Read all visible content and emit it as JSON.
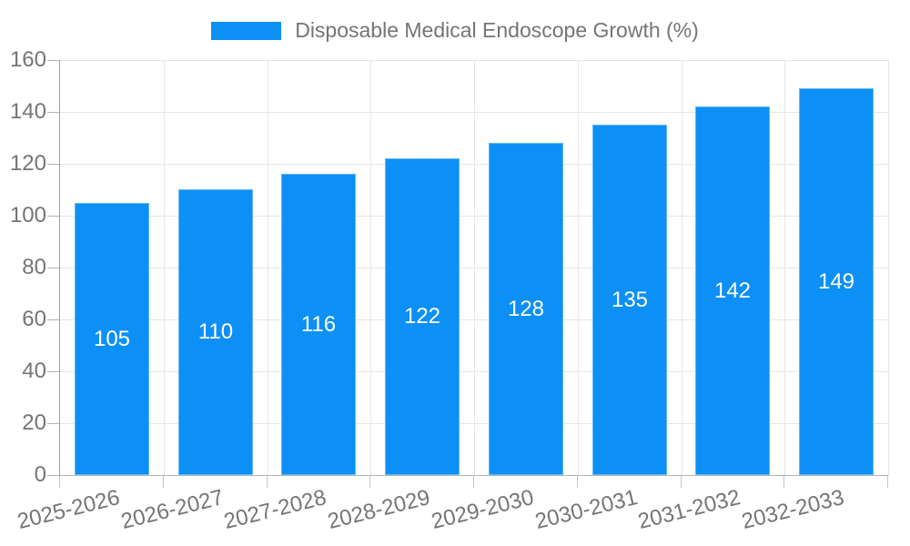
{
  "chart_data": {
    "type": "bar",
    "title": "",
    "legend": {
      "position": "top",
      "label": "Disposable Medical Endoscope Growth (%)"
    },
    "categories": [
      "2025-2026",
      "2026-2027",
      "2027-2028",
      "2028-2029",
      "2029-2030",
      "2030-2031",
      "2031-2032",
      "2032-2033"
    ],
    "series": [
      {
        "name": "Disposable Medical Endoscope Growth (%)",
        "values": [
          105,
          110,
          116,
          122,
          128,
          135,
          142,
          149
        ]
      }
    ],
    "xlabel": "",
    "ylabel": "",
    "ylim": [
      0,
      160
    ],
    "yticks": [
      0,
      20,
      40,
      60,
      80,
      100,
      120,
      140,
      160
    ],
    "grid": true,
    "colors": {
      "bar": "#0d90f5",
      "bar_label": "#ffffff",
      "grid": "#e6e6e6",
      "axis_y_line": "#9e9e9e",
      "axis_x_line": "#b3b3b3",
      "tick_text": "#757575",
      "background": "#ffffff"
    }
  }
}
